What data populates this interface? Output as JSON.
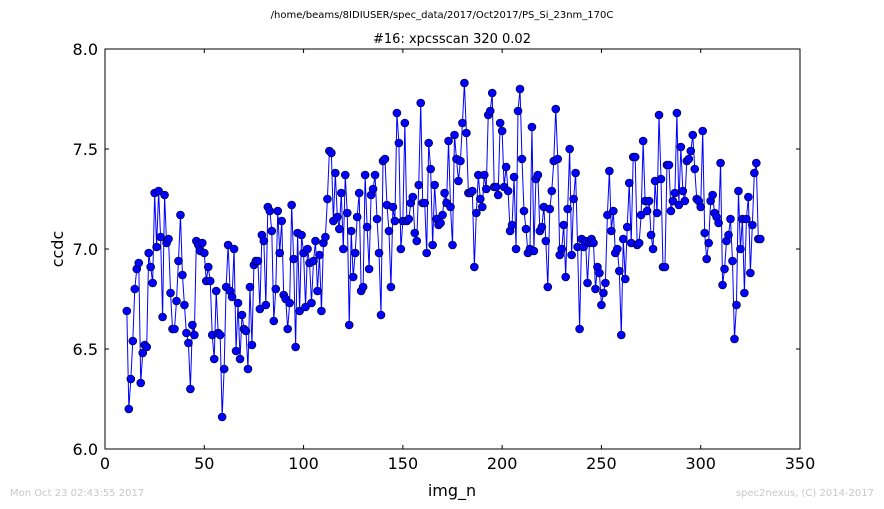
{
  "chart_data": {
    "type": "scatter",
    "suptitle": "/home/beams/8IDIUSER/spec_data/2017/Oct2017/PS_Si_23nm_170C",
    "title": "#16: xpcsscan 320 0.02",
    "xlabel": "img_n",
    "ylabel": "ccdc",
    "xlim": [
      0,
      350
    ],
    "ylim": [
      6.0,
      8.0
    ],
    "xticks": [
      0,
      50,
      100,
      150,
      200,
      250,
      300,
      350
    ],
    "yticks": [
      6.0,
      6.5,
      7.0,
      7.5,
      8.0
    ],
    "xtick_labels": [
      "0",
      "50",
      "100",
      "150",
      "200",
      "250",
      "300",
      "350"
    ],
    "ytick_labels": [
      "6.0",
      "6.5",
      "7.0",
      "7.5",
      "8.0"
    ],
    "grid": false,
    "series_color": "#0000ff",
    "marker": "circle-with-line",
    "x_start": 11,
    "x_step": 1,
    "y": [
      6.69,
      6.2,
      6.35,
      6.54,
      6.8,
      6.9,
      6.93,
      6.33,
      6.48,
      6.52,
      6.51,
      6.98,
      6.91,
      6.83,
      7.28,
      7.01,
      7.29,
      7.06,
      6.66,
      7.27,
      7.03,
      7.05,
      6.78,
      6.6,
      6.6,
      6.74,
      6.94,
      7.17,
      6.87,
      6.72,
      6.58,
      6.53,
      6.3,
      6.62,
      6.57,
      7.04,
      7.02,
      6.99,
      7.03,
      6.98,
      6.84,
      6.91,
      6.84,
      6.57,
      6.45,
      6.79,
      6.58,
      6.57,
      6.16,
      6.4,
      6.81,
      7.02,
      6.79,
      6.76,
      7.0,
      6.49,
      6.73,
      6.45,
      6.67,
      6.6,
      6.59,
      6.4,
      6.81,
      6.52,
      6.92,
      6.94,
      6.94,
      6.7,
      7.07,
      7.04,
      6.72,
      7.21,
      7.19,
      7.09,
      6.64,
      6.8,
      7.19,
      6.98,
      7.14,
      6.77,
      6.75,
      6.6,
      6.73,
      7.22,
      6.95,
      6.51,
      7.08,
      6.69,
      7.07,
      6.98,
      6.71,
      7.0,
      6.93,
      6.73,
      6.94,
      7.04,
      6.79,
      6.97,
      6.69,
      7.03,
      7.06,
      7.25,
      7.49,
      7.48,
      7.14,
      7.38,
      7.16,
      7.1,
      7.28,
      7.0,
      7.37,
      7.18,
      6.62,
      7.09,
      6.86,
      6.98,
      7.16,
      7.28,
      6.79,
      6.81,
      7.37,
      7.11,
      6.9,
      7.27,
      7.3,
      7.37,
      7.15,
      6.98,
      6.67,
      7.44,
      7.45,
      7.22,
      7.09,
      6.81,
      7.21,
      7.14,
      7.68,
      7.53,
      7.0,
      7.14,
      7.63,
      7.14,
      7.15,
      7.23,
      7.26,
      7.08,
      7.04,
      7.32,
      7.73,
      7.23,
      7.23,
      6.98,
      7.53,
      7.4,
      7.02,
      7.32,
      7.15,
      7.12,
      7.13,
      7.17,
      7.28,
      7.23,
      7.54,
      7.21,
      7.02,
      7.57,
      7.45,
      7.34,
      7.44,
      7.63,
      7.83,
      7.58,
      7.28,
      7.28,
      7.29,
      6.91,
      7.18,
      7.37,
      7.25,
      7.21,
      7.37,
      7.3,
      7.67,
      7.69,
      7.78,
      7.31,
      7.31,
      7.27,
      7.63,
      7.59,
      7.31,
      7.41,
      7.29,
      7.09,
      7.12,
      7.36,
      7.0,
      7.69,
      7.8,
      7.45,
      7.19,
      7.1,
      6.98,
      7.0,
      7.61,
      6.99,
      7.35,
      7.37,
      7.09,
      7.11,
      7.21,
      7.04,
      6.81,
      7.2,
      7.29,
      7.44,
      7.7,
      7.45,
      6.97,
      7.0,
      7.12,
      6.86,
      7.2,
      7.5,
      6.97,
      7.25,
      7.38,
      7.01,
      6.6,
      7.05,
      7.01,
      7.04,
      6.83,
      7.03,
      7.05,
      7.03,
      6.8,
      6.91,
      6.88,
      6.72,
      6.78,
      6.83,
      7.17,
      7.39,
      7.09,
      7.19,
      6.98,
      7.0,
      6.89,
      6.57,
      7.05,
      6.85,
      7.11,
      7.33,
      7.03,
      7.46,
      7.46,
      7.02,
      7.03,
      7.17,
      7.54,
      7.24,
      7.19,
      7.24,
      7.07,
      7.0,
      7.34,
      7.18,
      7.67,
      7.35,
      6.91,
      6.91,
      7.42,
      7.42,
      7.19,
      7.24,
      7.28,
      7.68,
      7.22,
      7.51,
      7.29,
      7.24,
      7.44,
      7.45,
      7.49,
      7.57,
      7.4,
      7.25,
      7.24,
      7.21,
      7.59,
      7.08,
      6.95,
      7.03,
      7.24,
      7.27,
      7.18,
      7.16,
      7.13,
      7.43,
      6.82,
      6.9,
      7.04,
      7.07,
      7.15,
      6.94,
      6.55,
      6.72,
      7.29,
      7.0,
      7.15,
      6.78,
      7.15,
      7.26,
      6.88,
      7.12,
      7.38,
      7.43,
      7.05,
      7.05
    ]
  },
  "footer": {
    "left": "Mon Oct 23 02:43:55 2017",
    "right": "spec2nexus, (C) 2014-2017"
  }
}
